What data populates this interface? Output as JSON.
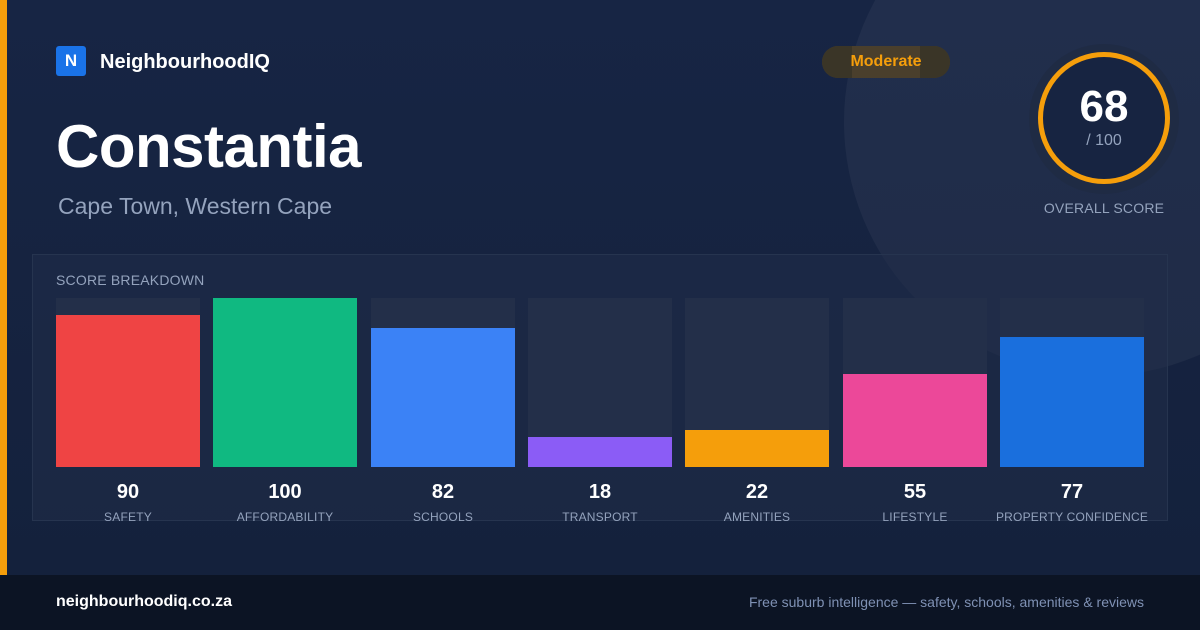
{
  "brand": {
    "logo_letter": "N",
    "name": "NeighbourhoodIQ",
    "logo_color": "#1a73e8"
  },
  "suburb": {
    "name": "Constantia",
    "location": "Cape Town, Western Cape"
  },
  "rating_badge": {
    "label": "Moderate",
    "color": "#f59e0b"
  },
  "overall": {
    "value": "68",
    "max": "/ 100",
    "label": "OVERALL SCORE",
    "ring_color": "#f59e0b"
  },
  "footer": {
    "url": "neighbourhoodiq.co.za",
    "tagline": "Free suburb intelligence — safety, schools, amenities & reviews"
  },
  "chart_data": {
    "type": "bar",
    "title": "SCORE BREAKDOWN",
    "categories": [
      "SAFETY",
      "AFFORDABILITY",
      "SCHOOLS",
      "TRANSPORT",
      "AMENITIES",
      "LIFESTYLE",
      "PROPERTY CONFIDENCE"
    ],
    "values": [
      90,
      100,
      82,
      18,
      22,
      55,
      77
    ],
    "colors": [
      "#ef4444",
      "#10b981",
      "#3b82f6",
      "#8b5cf6",
      "#f59e0b",
      "#ec4899",
      "#1a6fdd"
    ],
    "ylim": [
      0,
      100
    ],
    "grid": false
  }
}
